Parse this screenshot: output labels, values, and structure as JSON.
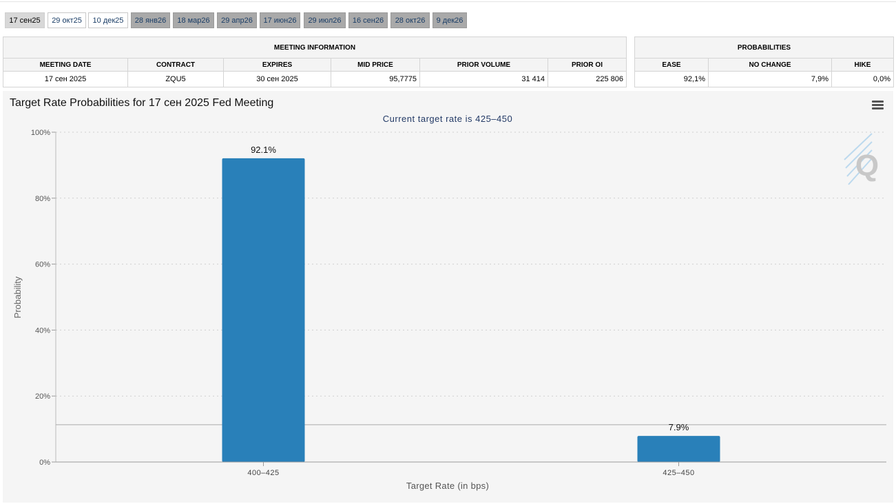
{
  "tabs": [
    {
      "label": "17 сен25",
      "state": "active"
    },
    {
      "label": "29 окт25",
      "state": "light"
    },
    {
      "label": "10 дек25",
      "state": "light"
    },
    {
      "label": "28 янв26",
      "state": "dark"
    },
    {
      "label": "18 мар26",
      "state": "dark"
    },
    {
      "label": "29 апр26",
      "state": "dark"
    },
    {
      "label": "17 июн26",
      "state": "dark"
    },
    {
      "label": "29 июл26",
      "state": "dark"
    },
    {
      "label": "16 сен26",
      "state": "dark"
    },
    {
      "label": "28 окт26",
      "state": "dark"
    },
    {
      "label": "9 дек26",
      "state": "dark"
    }
  ],
  "meeting_info": {
    "title": "MEETING INFORMATION",
    "headers": [
      "MEETING DATE",
      "CONTRACT",
      "EXPIRES",
      "MID PRICE",
      "PRIOR VOLUME",
      "PRIOR OI"
    ],
    "row": [
      "17 сен 2025",
      "ZQU5",
      "30 сен 2025",
      "95,7775",
      "31 414",
      "225 806"
    ]
  },
  "probabilities": {
    "title": "PROBABILITIES",
    "headers": [
      "EASE",
      "NO CHANGE",
      "HIKE"
    ],
    "row": [
      "92,1%",
      "7,9%",
      "0,0%"
    ]
  },
  "chart": {
    "title": "Target Rate Probabilities for 17 сен 2025 Fed Meeting",
    "menu_icon": "hamburger-menu-icon",
    "watermark": "Q"
  },
  "chart_data": {
    "type": "bar",
    "subtitle": "Current target rate is 425–450",
    "categories": [
      "400–425",
      "425–450"
    ],
    "values": [
      92.1,
      7.9
    ],
    "data_labels": [
      "92.1%",
      "7.9%"
    ],
    "xlabel": "Target Rate (in bps)",
    "ylabel": "Probability",
    "ylim": [
      0,
      100
    ],
    "yticks": [
      "0%",
      "20%",
      "40%",
      "60%",
      "80%",
      "100%"
    ],
    "grid": true,
    "bar_color": "#2980b9",
    "reference_line_value": 11.3
  }
}
